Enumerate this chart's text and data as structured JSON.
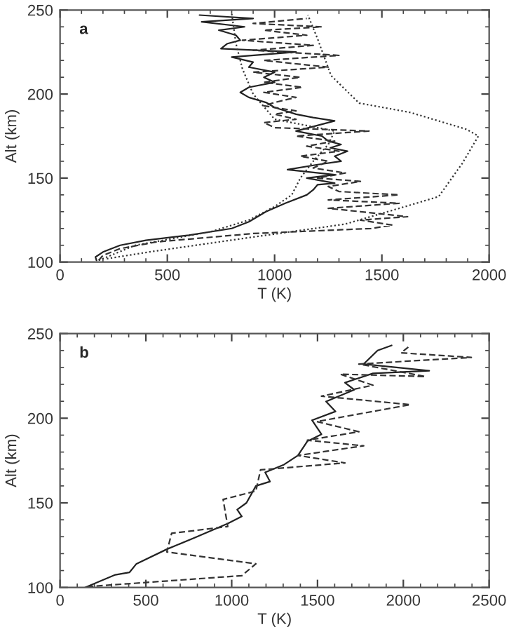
{
  "chart_data": [
    {
      "type": "line",
      "xlabel": "T (K)",
      "ylabel": "Alt (km)",
      "annotations": [
        "a"
      ],
      "xlim": [
        0,
        2000
      ],
      "xticks": [
        0,
        500,
        1000,
        1500,
        2000
      ],
      "ylim": [
        100,
        250
      ],
      "yticks": [
        100,
        150,
        200,
        250
      ],
      "grid": false,
      "legend": false,
      "series": [
        {
          "color": "#222222",
          "line_style": "solid",
          "x": [
            170,
            165,
            200,
            280,
            400,
            600,
            800,
            880,
            960,
            1050,
            1150,
            1180,
            1200,
            1280,
            1150,
            1280,
            1060,
            1200,
            1310,
            1280,
            1340,
            1260,
            1310,
            1250,
            1220,
            1100,
            1190,
            1280,
            1180,
            1100,
            1050,
            1000,
            960,
            880,
            840,
            880,
            1000,
            950,
            1000,
            880,
            900,
            800,
            1100,
            750,
            780,
            840,
            820,
            740,
            860,
            660,
            900,
            650
          ],
          "values": [
            101,
            103,
            106,
            110,
            113,
            116,
            120,
            124,
            130,
            135,
            140,
            143,
            146,
            147,
            150,
            152,
            155,
            158,
            160,
            163,
            166,
            168,
            170,
            172,
            175,
            178,
            181,
            184,
            186,
            188,
            190,
            192,
            195,
            198,
            201,
            204,
            207,
            210,
            213,
            216,
            219,
            222,
            225,
            227,
            230,
            232,
            235,
            238,
            240,
            243,
            245,
            247
          ]
        },
        {
          "color": "#333333",
          "line_style": "dashed",
          "x": [
            180,
            200,
            280,
            450,
            900,
            1450,
            1550,
            1400,
            1620,
            1400,
            1250,
            1580,
            1250,
            1580,
            1300,
            1250,
            1400,
            1200,
            1330,
            1180,
            1250,
            1120,
            1300,
            1150,
            1280,
            1100,
            1440,
            1000,
            950,
            1100,
            1000,
            1100,
            950,
            1000,
            1100,
            950,
            1130,
            950,
            1120,
            900,
            1250,
            950,
            1300,
            900,
            1180,
            850,
            1150,
            950,
            1220,
            900,
            1150
          ],
          "values": [
            101,
            104,
            108,
            112,
            117,
            120,
            122,
            125,
            127,
            130,
            132,
            135,
            137,
            140,
            142,
            145,
            148,
            150,
            153,
            156,
            160,
            163,
            166,
            169,
            172,
            175,
            178,
            180,
            183,
            185,
            188,
            190,
            193,
            195,
            198,
            201,
            204,
            207,
            210,
            213,
            216,
            220,
            223,
            226,
            229,
            232,
            235,
            238,
            240,
            242,
            245
          ]
        },
        {
          "color": "#333333",
          "line_style": "dotted",
          "x": [
            218,
            414,
            850,
            1329,
            1634,
            1765,
            1874,
            1950,
            1895,
            1634,
            1394,
            1263,
            1200,
            1155
          ],
          "values": [
            102,
            106,
            114,
            122.6,
            134,
            139,
            158.6,
            175,
            179,
            189,
            194.6,
            211,
            233,
            247
          ]
        },
        {
          "color": "#333333",
          "line_style": "dotted",
          "x": [
            180,
            350,
            700,
            880,
            1000,
            1080,
            1120,
            1180,
            1250,
            1280,
            1000,
            900,
            850,
            820,
            800
          ],
          "values": [
            101,
            110,
            118,
            125,
            133,
            140,
            150,
            160,
            170,
            178,
            185,
            200,
            215,
            230,
            248
          ]
        }
      ]
    },
    {
      "type": "line",
      "xlabel": "T (K)",
      "ylabel": "Alt (km)",
      "annotations": [
        "b"
      ],
      "xlim": [
        0,
        2500
      ],
      "xticks": [
        0,
        500,
        1000,
        1500,
        2000,
        2500
      ],
      "ylim": [
        100,
        250
      ],
      "yticks": [
        100,
        150,
        200,
        250
      ],
      "grid": false,
      "legend": false,
      "series": [
        {
          "color": "#222222",
          "line_style": "solid",
          "x": [
            145,
            322,
            404,
            445,
            622,
            786,
            977,
            1059,
            1032,
            1086,
            1141,
            1223,
            1195,
            1305,
            1386,
            1441,
            1523,
            1468,
            1605,
            1550,
            1714,
            1660,
            1823,
            2151,
            1769,
            1850,
            1932
          ],
          "values": [
            100,
            107.5,
            108.9,
            114,
            122.6,
            129.5,
            137.8,
            142,
            146,
            150,
            160,
            162.6,
            168,
            172.6,
            178,
            186.4,
            190.5,
            198.8,
            204,
            209.9,
            216.8,
            221,
            226.5,
            228,
            232,
            240,
            243
          ]
        },
        {
          "color": "#333333",
          "line_style": "dashed",
          "x": [
            158,
            1059,
            1141,
            622,
            650,
            977,
            950,
            1141,
            1168,
            1660,
            1386,
            1769,
            1441,
            1741,
            1496,
            2041,
            1523,
            1823,
            1632,
            2129,
            1741,
            2396,
            1987,
            2041
          ],
          "values": [
            100.5,
            107,
            114,
            121,
            132,
            136,
            152,
            157,
            169.5,
            173.6,
            178,
            183.7,
            187,
            192,
            198,
            208,
            213,
            219.5,
            226,
            224.6,
            232,
            235.9,
            238.6,
            243
          ]
        }
      ]
    }
  ]
}
